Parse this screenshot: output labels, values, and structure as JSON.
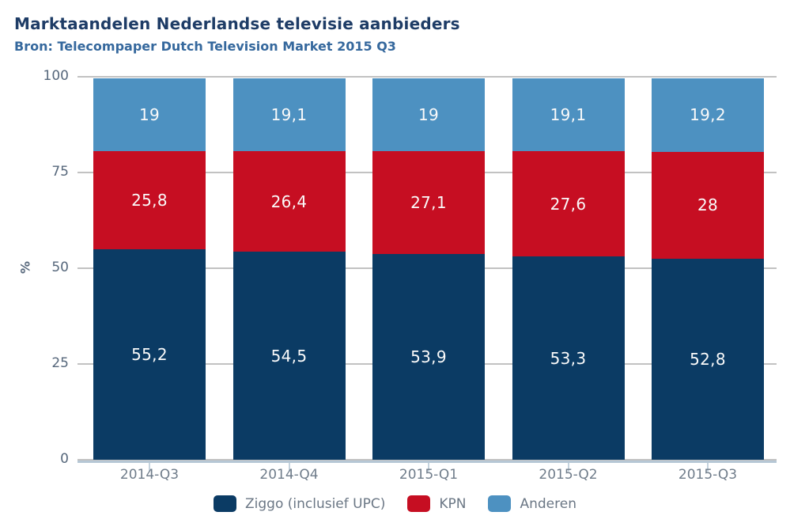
{
  "header": {
    "title": "Marktaandelen Nederlandse televisie aanbieders",
    "subtitle": "Bron: Telecompaper Dutch Television Market 2015 Q3"
  },
  "chart_data": {
    "type": "bar",
    "stacked": true,
    "title": "Marktaandelen Nederlandse televisie aanbieders",
    "subtitle": "Bron: Telecompaper Dutch Television Market 2015 Q3",
    "categories": [
      "2014-Q3",
      "2014-Q4",
      "2015-Q1",
      "2015-Q2",
      "2015-Q3"
    ],
    "series": [
      {
        "name": "Ziggo (inclusief UPC)",
        "color": "#0b3b64",
        "values": [
          55.2,
          54.5,
          53.9,
          53.3,
          52.8
        ],
        "labels": [
          "55,2",
          "54,5",
          "53,9",
          "53,3",
          "52,8"
        ]
      },
      {
        "name": "KPN",
        "color": "#c60e22",
        "values": [
          25.8,
          26.4,
          27.1,
          27.6,
          28
        ],
        "labels": [
          "25,8",
          "26,4",
          "27,1",
          "27,6",
          "28"
        ]
      },
      {
        "name": "Anderen",
        "color": "#4d91c1",
        "values": [
          19,
          19.1,
          19,
          19.1,
          19.2
        ],
        "labels": [
          "19",
          "19,1",
          "19",
          "19,1",
          "19,2"
        ]
      }
    ],
    "xlabel": "",
    "ylabel": "%",
    "ylim": [
      0,
      100
    ],
    "yticks": [
      0,
      25,
      50,
      75,
      100
    ],
    "ytick_labels": [
      "0",
      "25",
      "50",
      "75",
      "100"
    ],
    "grid": true,
    "legend_position": "bottom"
  },
  "colors": {
    "title": "#1e3c66",
    "subtitle": "#35689d",
    "grid": "#c2c2c2",
    "axis_line": "#b6c7d5",
    "tick_label": "#56677b",
    "category_label": "#6f7c8a",
    "data_label": "#fafafa",
    "background": "#ffffff"
  }
}
